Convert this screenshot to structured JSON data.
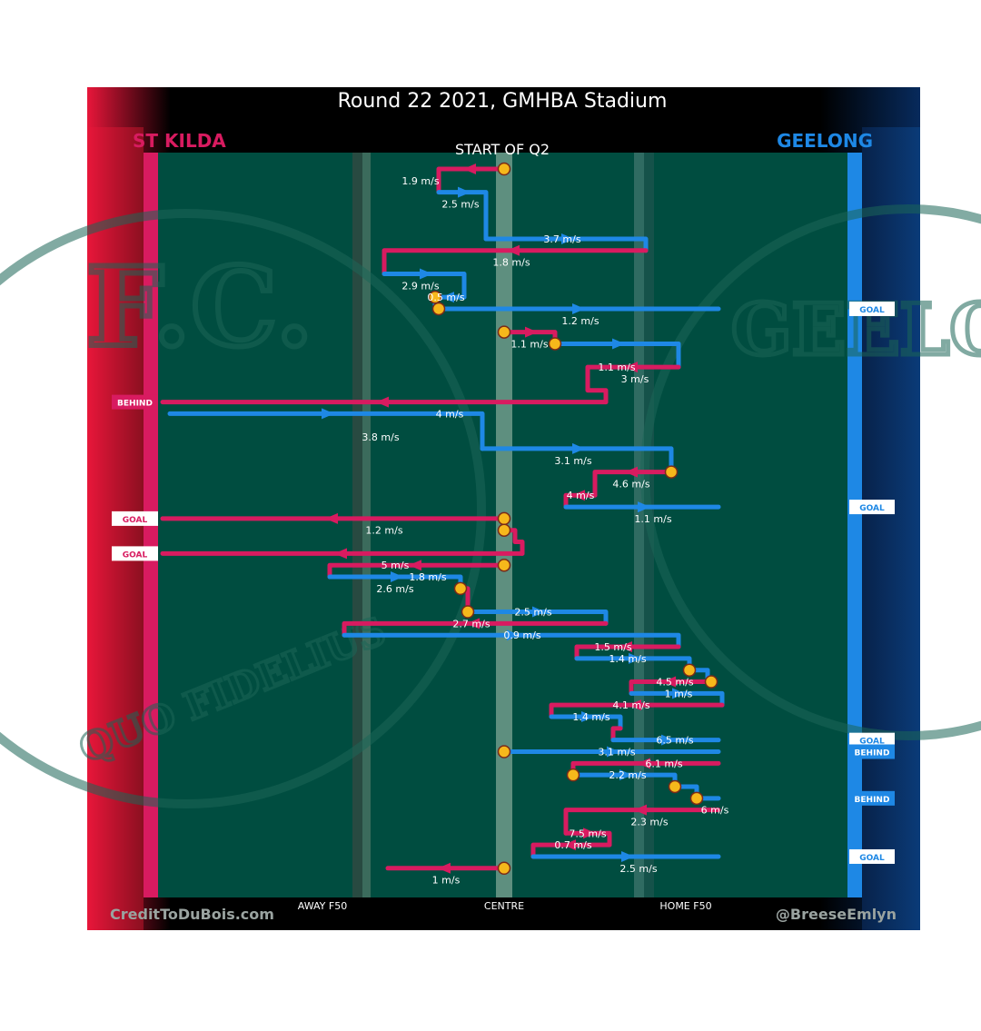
{
  "chart_data": {
    "type": "line",
    "title": "Round 22 2021, GMHBA Stadium",
    "subtitle": "START OF Q2",
    "teams": {
      "left": {
        "name": "ST KILDA",
        "color": "#d81b60"
      },
      "right": {
        "name": "GEELONG",
        "color": "#1e88e5"
      }
    },
    "x_axis": {
      "labels": [
        "AWAY F50",
        "CENTRE",
        "HOME F50"
      ],
      "label_positions": [
        50,
        0,
        -50
      ],
      "xlim": [
        99,
        -70
      ]
    },
    "y_axis": {
      "type": "category",
      "unit": "passage"
    },
    "credit_left": "CreditToDuBois.com",
    "credit_right": "@BreeseEmlyn",
    "background_watermarks": [
      "F.C.",
      "GEELO",
      "QUO FIDELIUS"
    ],
    "passages": [
      {
        "team": "left",
        "speed": "1.9 m/s",
        "label_x": 23,
        "label_row": 2,
        "path": [
          [
            0,
            1
          ],
          [
            18,
            1
          ],
          [
            18,
            3
          ]
        ]
      },
      {
        "team": "right",
        "speed": "2.5 m/s",
        "label_x": 12,
        "label_row": 4,
        "path": [
          [
            18,
            3
          ],
          [
            5,
            3
          ],
          [
            5,
            7
          ]
        ]
      },
      {
        "team": "right",
        "speed": "3.7 m/s",
        "label_x": -16,
        "label_row": 7,
        "path": [
          [
            5,
            7
          ],
          [
            -39,
            7
          ],
          [
            -39,
            8
          ]
        ]
      },
      {
        "team": "left",
        "speed": "1.8 m/s",
        "label_x": -2,
        "label_row": 9,
        "path": [
          [
            -39,
            8
          ],
          [
            33,
            8
          ],
          [
            33,
            10
          ]
        ]
      },
      {
        "team": "right",
        "speed": "2.9 m/s",
        "label_x": 23,
        "label_row": 11,
        "path": [
          [
            33,
            10
          ],
          [
            11,
            10
          ],
          [
            11,
            12
          ]
        ]
      },
      {
        "team": "right",
        "speed": "0.5 m/s",
        "label_x": 16,
        "label_row": 12,
        "path": [
          [
            11,
            12
          ],
          [
            19,
            12
          ],
          [
            19,
            13
          ]
        ]
      },
      {
        "team": "right",
        "speed": "1.2 m/s",
        "label_x": -21,
        "label_row": 14,
        "path": [
          [
            19,
            13
          ],
          [
            -59,
            13
          ]
        ],
        "outcome": "GOAL"
      },
      {
        "team": "left",
        "speed": "1.1 m/s",
        "label_x": -7,
        "label_row": 16,
        "path": [
          [
            0,
            15
          ],
          [
            -14,
            15
          ],
          [
            -14,
            16
          ]
        ]
      },
      {
        "team": "right",
        "speed": "1.1 m/s",
        "label_x": -31,
        "label_row": 18,
        "path": [
          [
            -14,
            16
          ],
          [
            -48,
            16
          ],
          [
            -48,
            18
          ]
        ]
      },
      {
        "team": "left",
        "speed": "3 m/s",
        "label_x": -36,
        "label_row": 19,
        "path": [
          [
            -48,
            18
          ],
          [
            -23,
            18
          ],
          [
            -23,
            20
          ],
          [
            -28,
            20
          ],
          [
            -28,
            21
          ]
        ]
      },
      {
        "team": "left",
        "speed": "4 m/s",
        "label_x": 15,
        "label_row": 22,
        "path": [
          [
            -28,
            21
          ],
          [
            94,
            21
          ]
        ],
        "outcome": "BEHIND"
      },
      {
        "team": "right",
        "speed": "3.8 m/s",
        "label_x": 34,
        "label_row": 24,
        "path": [
          [
            92,
            22
          ],
          [
            6,
            22
          ],
          [
            6,
            25
          ]
        ]
      },
      {
        "team": "right",
        "speed": "3.1 m/s",
        "label_x": -19,
        "label_row": 26,
        "path": [
          [
            6,
            25
          ],
          [
            -46,
            25
          ],
          [
            -46,
            27
          ]
        ]
      },
      {
        "team": "left",
        "speed": "4.6 m/s",
        "label_x": -35,
        "label_row": 28,
        "path": [
          [
            -46,
            27
          ],
          [
            -25,
            27
          ],
          [
            -25,
            29
          ]
        ]
      },
      {
        "team": "left",
        "speed": "4 m/s",
        "label_x": -21,
        "label_row": 29,
        "path": [
          [
            -25,
            29
          ],
          [
            -17,
            29
          ],
          [
            -17,
            30
          ]
        ]
      },
      {
        "team": "right",
        "speed": "1.1 m/s",
        "label_x": -41,
        "label_row": 31,
        "path": [
          [
            -17,
            30
          ],
          [
            -59,
            30
          ]
        ],
        "outcome": "GOAL"
      },
      {
        "team": "left",
        "speed": "1.2 m/s",
        "label_x": 33,
        "label_row": 32,
        "path": [
          [
            0,
            31
          ],
          [
            94,
            31
          ]
        ],
        "outcome": "GOAL"
      },
      {
        "team": "left",
        "speed": "",
        "label_x": 0,
        "label_row": 0,
        "path": [
          [
            0,
            32
          ],
          [
            -3,
            32
          ],
          [
            -3,
            33
          ],
          [
            -5,
            33
          ],
          [
            -5,
            34
          ]
        ]
      },
      {
        "team": "left",
        "speed": "5 m/s",
        "label_x": 30,
        "label_row": 35,
        "path": [
          [
            -5,
            34
          ],
          [
            94,
            34
          ]
        ],
        "outcome": "GOAL"
      },
      {
        "team": "left",
        "speed": "1.8 m/s",
        "label_x": 21,
        "label_row": 36,
        "path": [
          [
            0,
            35
          ],
          [
            48,
            35
          ],
          [
            48,
            36
          ]
        ]
      },
      {
        "team": "right",
        "speed": "2.6 m/s",
        "label_x": 30,
        "label_row": 37,
        "path": [
          [
            48,
            36
          ],
          [
            12,
            36
          ],
          [
            12,
            37
          ]
        ]
      },
      {
        "team": "left",
        "speed": "",
        "label_x": 0,
        "label_row": 0,
        "path": [
          [
            12,
            37
          ],
          [
            10,
            37
          ],
          [
            10,
            39
          ]
        ]
      },
      {
        "team": "right",
        "speed": "2.5 m/s",
        "label_x": -8,
        "label_row": 39,
        "path": [
          [
            10,
            39
          ],
          [
            -28,
            39
          ],
          [
            -28,
            40
          ]
        ]
      },
      {
        "team": "left",
        "speed": "2.7 m/s",
        "label_x": 9,
        "label_row": 40,
        "path": [
          [
            -28,
            40
          ],
          [
            44,
            40
          ],
          [
            44,
            41
          ]
        ]
      },
      {
        "team": "right",
        "speed": "0.9 m/s",
        "label_x": -5,
        "label_row": 41,
        "path": [
          [
            44,
            41
          ],
          [
            -48,
            41
          ],
          [
            -48,
            42
          ]
        ]
      },
      {
        "team": "left",
        "speed": "1.5 m/s",
        "label_x": -30,
        "label_row": 42,
        "path": [
          [
            -48,
            42
          ],
          [
            -20,
            42
          ],
          [
            -20,
            43
          ]
        ]
      },
      {
        "team": "right",
        "speed": "1.4 m/s",
        "label_x": -34,
        "label_row": 43,
        "path": [
          [
            -20,
            43
          ],
          [
            -51,
            43
          ],
          [
            -51,
            44
          ]
        ]
      },
      {
        "team": "right",
        "speed": "",
        "label_x": 0,
        "label_row": 0,
        "path": [
          [
            -51,
            44
          ],
          [
            -56,
            44
          ],
          [
            -56,
            45
          ]
        ]
      },
      {
        "team": "left",
        "speed": "4.5 m/s",
        "label_x": -47,
        "label_row": 45,
        "path": [
          [
            -57,
            45
          ],
          [
            -35,
            45
          ],
          [
            -35,
            46
          ]
        ]
      },
      {
        "team": "right",
        "speed": "1 m/s",
        "label_x": -48,
        "label_row": 46,
        "path": [
          [
            -35,
            46
          ],
          [
            -60,
            46
          ],
          [
            -60,
            47
          ]
        ]
      },
      {
        "team": "left",
        "speed": "4.1 m/s",
        "label_x": -35,
        "label_row": 47,
        "path": [
          [
            -60,
            47
          ],
          [
            -13,
            47
          ],
          [
            -13,
            48
          ]
        ]
      },
      {
        "team": "right",
        "speed": "1.4 m/s",
        "label_x": -24,
        "label_row": 48,
        "path": [
          [
            -13,
            48
          ],
          [
            -32,
            48
          ],
          [
            -32,
            49
          ]
        ]
      },
      {
        "team": "left",
        "speed": "",
        "label_x": 0,
        "label_row": 0,
        "path": [
          [
            -32,
            49
          ],
          [
            -30,
            49
          ],
          [
            -30,
            50
          ]
        ]
      },
      {
        "team": "right",
        "speed": "6.5 m/s",
        "label_x": -47,
        "label_row": 50,
        "path": [
          [
            -30,
            50
          ],
          [
            -59,
            50
          ]
        ],
        "outcome": "GOAL"
      },
      {
        "team": "right",
        "speed": "3.1 m/s",
        "label_x": -31,
        "label_row": 51,
        "path": [
          [
            0,
            51
          ],
          [
            -59,
            51
          ]
        ],
        "outcome": "BEHIND"
      },
      {
        "team": "left",
        "speed": "6.1 m/s",
        "label_x": -44,
        "label_row": 52,
        "path": [
          [
            -59,
            52
          ],
          [
            -19,
            52
          ],
          [
            -19,
            53
          ]
        ]
      },
      {
        "team": "right",
        "speed": "2.2 m/s",
        "label_x": -34,
        "label_row": 53,
        "path": [
          [
            -19,
            53
          ],
          [
            -47,
            53
          ],
          [
            -47,
            54
          ]
        ]
      },
      {
        "team": "right",
        "speed": "",
        "label_x": 0,
        "label_row": 0,
        "path": [
          [
            -47,
            54
          ],
          [
            -53,
            54
          ],
          [
            -53,
            55
          ]
        ]
      },
      {
        "team": "right",
        "speed": "6 m/s",
        "label_x": -58,
        "label_row": 56,
        "path": [
          [
            -53,
            55
          ],
          [
            -59,
            55
          ]
        ],
        "outcome": "BEHIND"
      },
      {
        "team": "left",
        "speed": "2.3 m/s",
        "label_x": -40,
        "label_row": 57,
        "path": [
          [
            -59,
            56
          ],
          [
            -17,
            56
          ],
          [
            -17,
            58
          ]
        ]
      },
      {
        "team": "left",
        "speed": "7.5 m/s",
        "label_x": -23,
        "label_row": 58,
        "path": [
          [
            -17,
            58
          ],
          [
            -29,
            58
          ],
          [
            -29,
            59
          ]
        ]
      },
      {
        "team": "left",
        "speed": "0.7 m/s",
        "label_x": -19,
        "label_row": 59,
        "path": [
          [
            -29,
            59
          ],
          [
            -8,
            59
          ],
          [
            -8,
            60
          ]
        ]
      },
      {
        "team": "right",
        "speed": "2.5 m/s",
        "label_x": -37,
        "label_row": 61,
        "path": [
          [
            -8,
            60
          ],
          [
            -59,
            60
          ]
        ],
        "outcome": "GOAL"
      },
      {
        "team": "left",
        "speed": "1 m/s",
        "label_x": 16,
        "label_row": 62,
        "path": [
          [
            0,
            61
          ],
          [
            32,
            61
          ]
        ]
      }
    ],
    "stoppages": [
      {
        "x": 0,
        "row": 1
      },
      {
        "x": 18,
        "row": 13
      },
      {
        "x": 19,
        "row": 12
      },
      {
        "x": 0,
        "row": 15
      },
      {
        "x": -14,
        "row": 16
      },
      {
        "x": -46,
        "row": 27
      },
      {
        "x": 0,
        "row": 31
      },
      {
        "x": 0,
        "row": 32
      },
      {
        "x": 0,
        "row": 35
      },
      {
        "x": 12,
        "row": 37
      },
      {
        "x": 10,
        "row": 39
      },
      {
        "x": -51,
        "row": 44
      },
      {
        "x": -57,
        "row": 45
      },
      {
        "x": 0,
        "row": 51
      },
      {
        "x": -19,
        "row": 53
      },
      {
        "x": -47,
        "row": 54
      },
      {
        "x": -53,
        "row": 55
      },
      {
        "x": 0,
        "row": 61
      }
    ]
  }
}
